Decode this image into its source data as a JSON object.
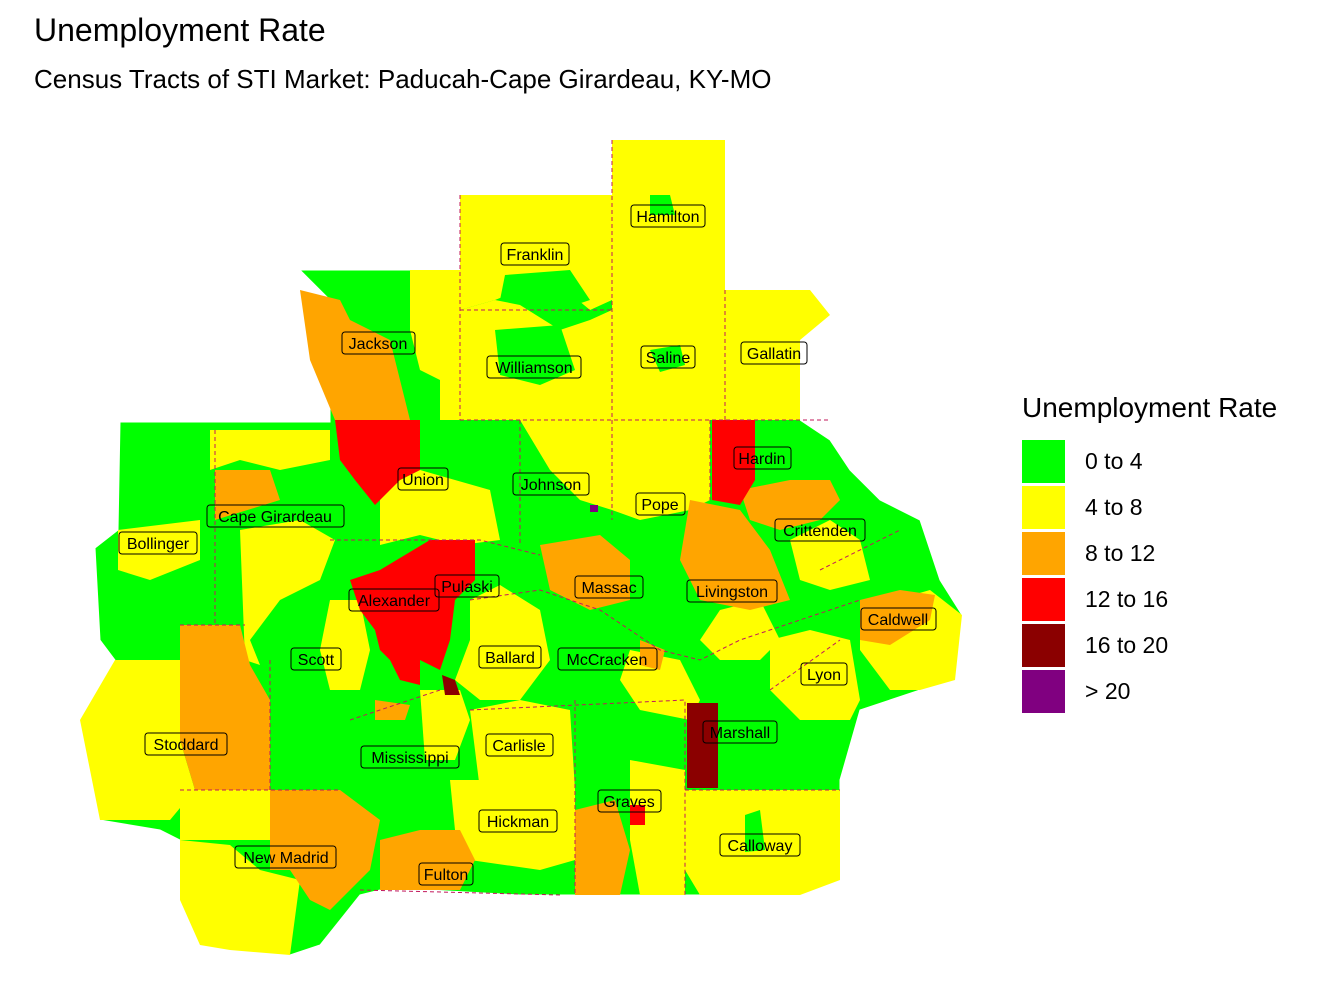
{
  "title": "Unemployment Rate",
  "subtitle": "Census Tracts of STI Market: Paducah-Cape Girardeau, KY-MO",
  "legend": {
    "title": "Unemployment Rate",
    "items": [
      {
        "label": "0 to 4",
        "color": "#00ff00"
      },
      {
        "label": "4 to 8",
        "color": "#ffff00"
      },
      {
        "label": "8 to 12",
        "color": "#ffa500"
      },
      {
        "label": "12 to 16",
        "color": "#ff0000"
      },
      {
        "label": "16 to 20",
        "color": "#8b0000"
      },
      {
        "label": "> 20",
        "color": "#800080"
      }
    ]
  },
  "counties": [
    {
      "name": "Hamilton"
    },
    {
      "name": "Franklin"
    },
    {
      "name": "Jackson"
    },
    {
      "name": "Williamson"
    },
    {
      "name": "Saline"
    },
    {
      "name": "Gallatin"
    },
    {
      "name": "Hardin"
    },
    {
      "name": "Union"
    },
    {
      "name": "Johnson"
    },
    {
      "name": "Pope"
    },
    {
      "name": "Cape Girardeau"
    },
    {
      "name": "Crittenden"
    },
    {
      "name": "Bollinger"
    },
    {
      "name": "Pulaski"
    },
    {
      "name": "Massac"
    },
    {
      "name": "Alexander"
    },
    {
      "name": "Livingston"
    },
    {
      "name": "Caldwell"
    },
    {
      "name": "Scott"
    },
    {
      "name": "Ballard"
    },
    {
      "name": "McCracken"
    },
    {
      "name": "Lyon"
    },
    {
      "name": "Marshall"
    },
    {
      "name": "Stoddard"
    },
    {
      "name": "Carlisle"
    },
    {
      "name": "Mississippi"
    },
    {
      "name": "Graves"
    },
    {
      "name": "Hickman"
    },
    {
      "name": "Calloway"
    },
    {
      "name": "New Madrid"
    },
    {
      "name": "Fulton"
    }
  ]
}
